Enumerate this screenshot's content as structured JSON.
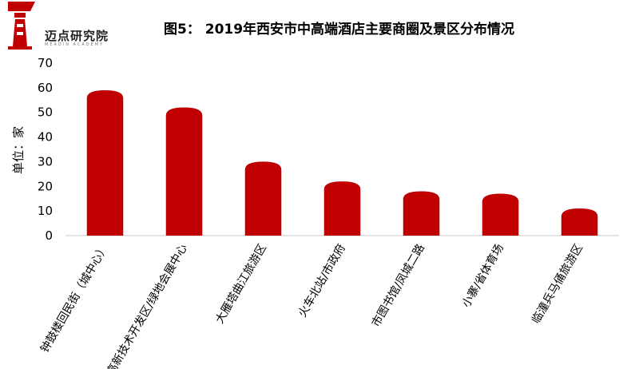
{
  "logo": {
    "name": "迈点研究院",
    "sub": "MEADIN ACADEMY"
  },
  "chart_data": {
    "type": "bar",
    "title": "图5： 2019年西安市中高端酒店主要商圈及景区分布情况",
    "xlabel": "",
    "ylabel": "单位：家",
    "categories": [
      "钟鼓楼回民街（城中心）",
      "高新技术开发区/绿地会展中心",
      "大雁塔曲江旅游区",
      "火车北站/市政府",
      "市图书馆/凤城二路",
      "小寨/省体育场",
      "临潼兵马俑旅游区"
    ],
    "values": [
      59,
      52,
      30,
      22,
      18,
      17,
      11
    ],
    "ylim": [
      0,
      70
    ],
    "yticks": [
      0,
      10,
      20,
      30,
      40,
      50,
      60,
      70
    ],
    "grid": false,
    "legend": "none",
    "bar_color": "#c00000"
  }
}
